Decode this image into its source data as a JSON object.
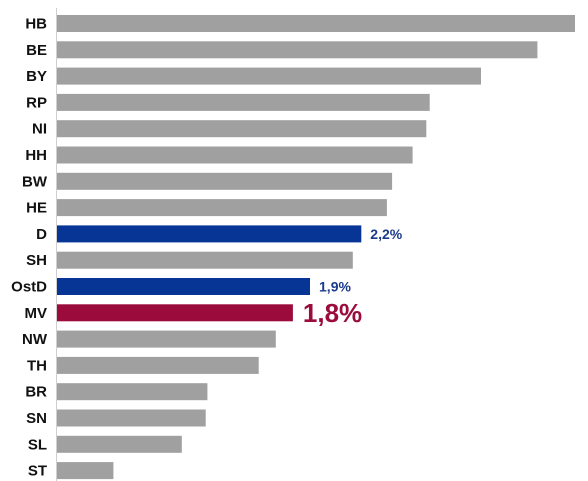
{
  "chart_data": {
    "type": "bar",
    "orientation": "horizontal",
    "categories": [
      "HB",
      "BE",
      "BY",
      "RP",
      "NI",
      "HH",
      "BW",
      "HE",
      "D",
      "SH",
      "OstD",
      "MV",
      "NW",
      "TH",
      "BR",
      "SN",
      "SL",
      "ST"
    ],
    "values": [
      3.45,
      3.23,
      2.9,
      2.6,
      2.58,
      2.5,
      2.38,
      2.35,
      2.2,
      2.15,
      1.9,
      1.8,
      1.7,
      1.6,
      1.3,
      1.29,
      1.15,
      0.75
    ],
    "data_labels": [
      "",
      "",
      "",
      "",
      "",
      "",
      "",
      "",
      "2,2%",
      "",
      "1,9%",
      "1,8%",
      "",
      "",
      "",
      "",
      "",
      ""
    ],
    "bar_colors": [
      "#a0a0a0",
      "#a0a0a0",
      "#a0a0a0",
      "#a0a0a0",
      "#a0a0a0",
      "#a0a0a0",
      "#a0a0a0",
      "#a0a0a0",
      "#063596",
      "#a0a0a0",
      "#063596",
      "#9b0b3c",
      "#a0a0a0",
      "#a0a0a0",
      "#a0a0a0",
      "#a0a0a0",
      "#a0a0a0",
      "#a0a0a0"
    ],
    "label_colors": [
      "",
      "",
      "",
      "",
      "",
      "",
      "",
      "",
      "#1a3a8c",
      "",
      "#1a3a8c",
      "#9b0b3c",
      "",
      "",
      "",
      "",
      "",
      ""
    ],
    "label_emphasis": [
      "normal",
      "normal",
      "normal",
      "normal",
      "normal",
      "normal",
      "normal",
      "normal",
      "normal",
      "normal",
      "normal",
      "large",
      "normal",
      "normal",
      "normal",
      "normal",
      "normal",
      "normal"
    ],
    "xlim": [
      0.42,
      3.45
    ],
    "grid": false,
    "legend": "none",
    "title": "",
    "xlabel": "",
    "ylabel": ""
  }
}
